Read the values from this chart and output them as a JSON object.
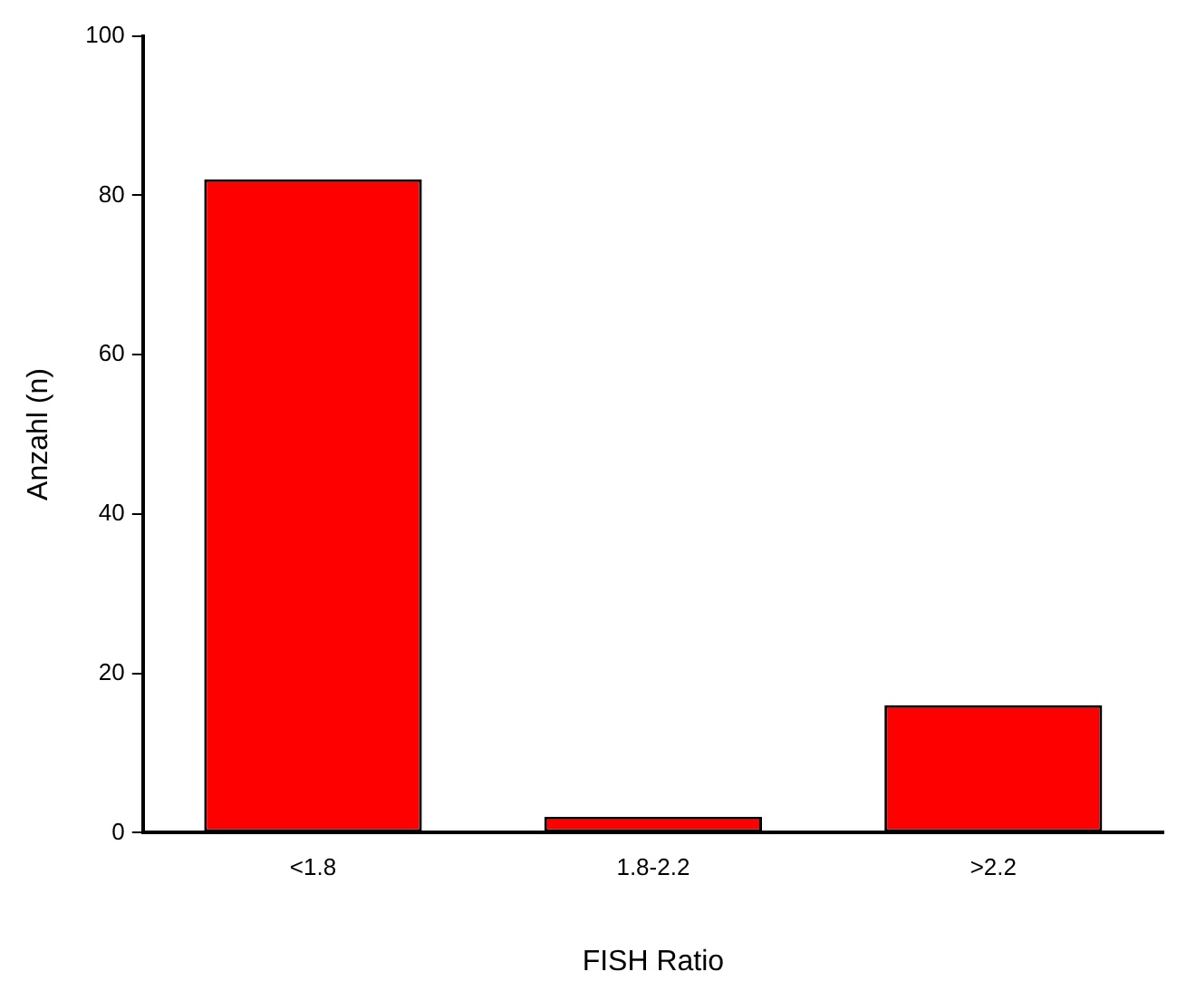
{
  "chart_data": {
    "type": "bar",
    "xlabel": "FISH Ratio",
    "ylabel": "Anzahl (n)",
    "categories": [
      "<1.8",
      "1.8-2.2",
      ">2.2"
    ],
    "values": [
      82,
      2,
      16
    ],
    "color": "#ff0000",
    "ylim": [
      0,
      100
    ],
    "yticks": [
      0,
      20,
      40,
      60,
      80,
      100
    ],
    "grid": false,
    "legend": false
  }
}
